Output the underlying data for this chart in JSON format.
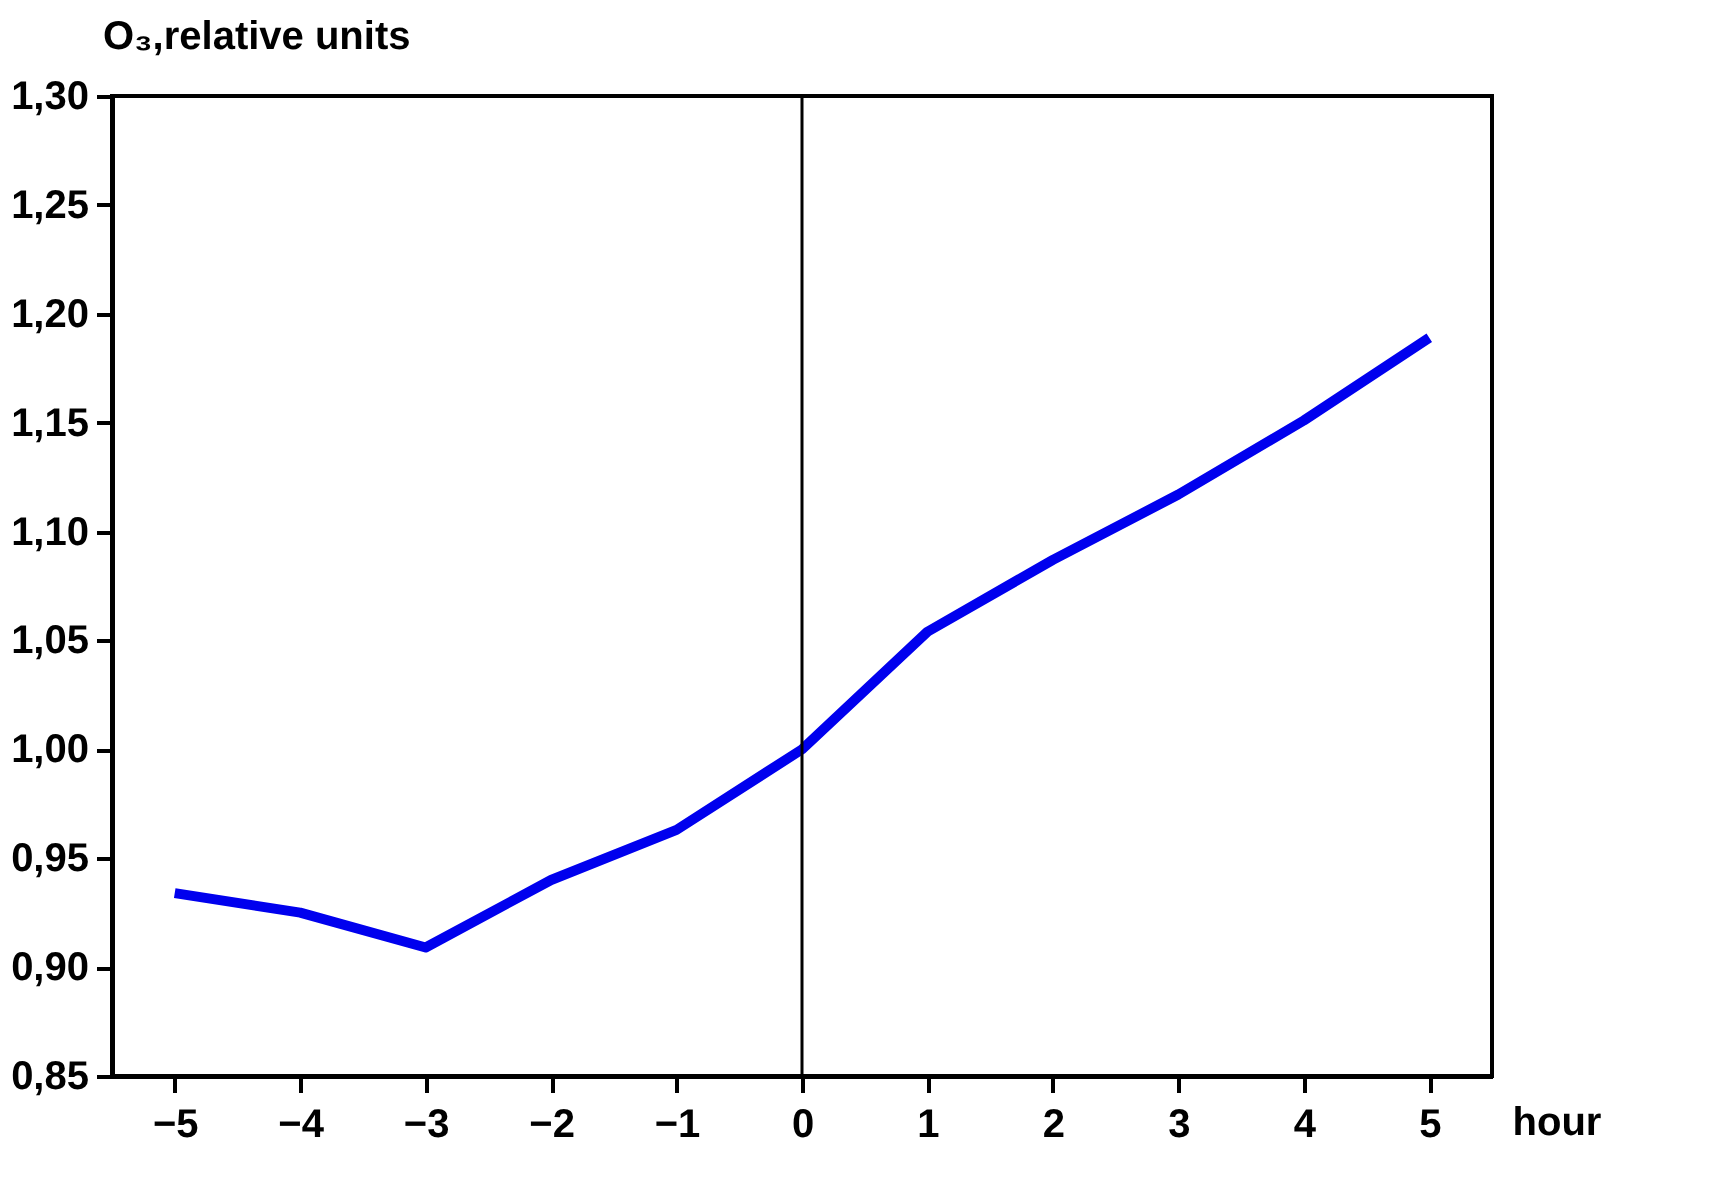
{
  "chart_data": {
    "type": "line",
    "xlabel": "hour",
    "ylabel": "O₃,relative units",
    "x": [
      -5,
      -4,
      -3,
      -2,
      -1,
      0,
      1,
      2,
      3,
      4,
      5
    ],
    "series": [
      {
        "color": "#0000ee",
        "values": [
          0.934,
          0.925,
          0.909,
          0.94,
          0.963,
          1.0,
          1.054,
          1.087,
          1.117,
          1.151,
          1.189
        ]
      }
    ],
    "xlim": [
      -5.5,
      5.5
    ],
    "xticks": [
      -5,
      -4,
      -3,
      -2,
      -1,
      0,
      1,
      2,
      3,
      4,
      5
    ],
    "ylim": [
      0.85,
      1.3
    ],
    "yticks": [
      {
        "value": 0.85,
        "label": "0,85"
      },
      {
        "value": 0.9,
        "label": "0,90"
      },
      {
        "value": 0.95,
        "label": "0,95"
      },
      {
        "value": 1.0,
        "label": "1,00"
      },
      {
        "value": 1.05,
        "label": "1,05"
      },
      {
        "value": 1.1,
        "label": "1,10"
      },
      {
        "value": 1.15,
        "label": "1,15"
      },
      {
        "value": 1.2,
        "label": "1,20"
      },
      {
        "value": 1.25,
        "label": "1,25"
      },
      {
        "value": 1.3,
        "label": "1,30"
      }
    ],
    "ref_lines": [
      {
        "axis": "x",
        "value": 0,
        "color": "#000000",
        "line_style": "solid"
      }
    ],
    "grid": false,
    "marker": "none",
    "line_style": "solid"
  }
}
